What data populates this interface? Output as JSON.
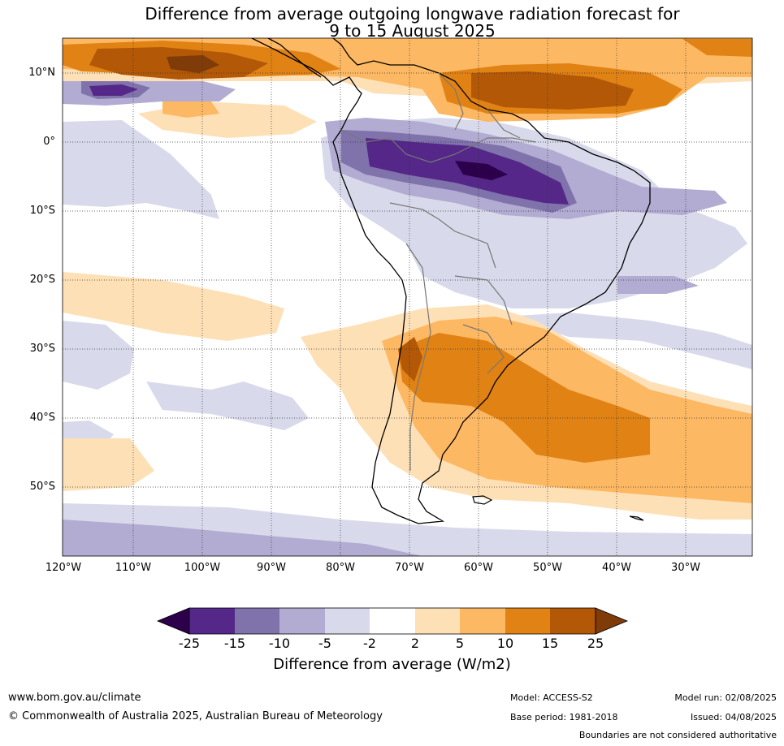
{
  "title": {
    "line1": "Difference from average outgoing longwave radiation forecast for",
    "line2": "9 to 15 August 2025"
  },
  "map": {
    "lat_labels": [
      "10°N",
      "0°",
      "10°S",
      "20°S",
      "30°S",
      "40°S",
      "50°S"
    ],
    "lon_labels": [
      "120°W",
      "110°W",
      "100°W",
      "90°W",
      "80°W",
      "70°W",
      "60°W",
      "50°W",
      "40°W",
      "30°W"
    ],
    "grid": true
  },
  "colorbar": {
    "ticks": [
      "-25",
      "-15",
      "-10",
      "-5",
      "-2",
      "2",
      "5",
      "10",
      "15",
      "25"
    ],
    "colors": [
      "#2d004b",
      "#542788",
      "#8073ac",
      "#b2abd2",
      "#d8daeb",
      "#ffffff",
      "#fee0b6",
      "#fdb863",
      "#e08214",
      "#b35806",
      "#7f3b08"
    ],
    "label": "Difference from average (W/m2)"
  },
  "footer": {
    "url": "www.bom.gov.au/climate",
    "copyright": "© Commonwealth of Australia 2025, Australian Bureau of Meteorology",
    "model": "Model: ACCESS-S2",
    "base_period": "Base period: 1981-2018",
    "model_run": "Model run: 02/08/2025",
    "issued": "Issued: 04/08/2025",
    "boundaries_note": "Boundaries are not considered authoritative"
  }
}
